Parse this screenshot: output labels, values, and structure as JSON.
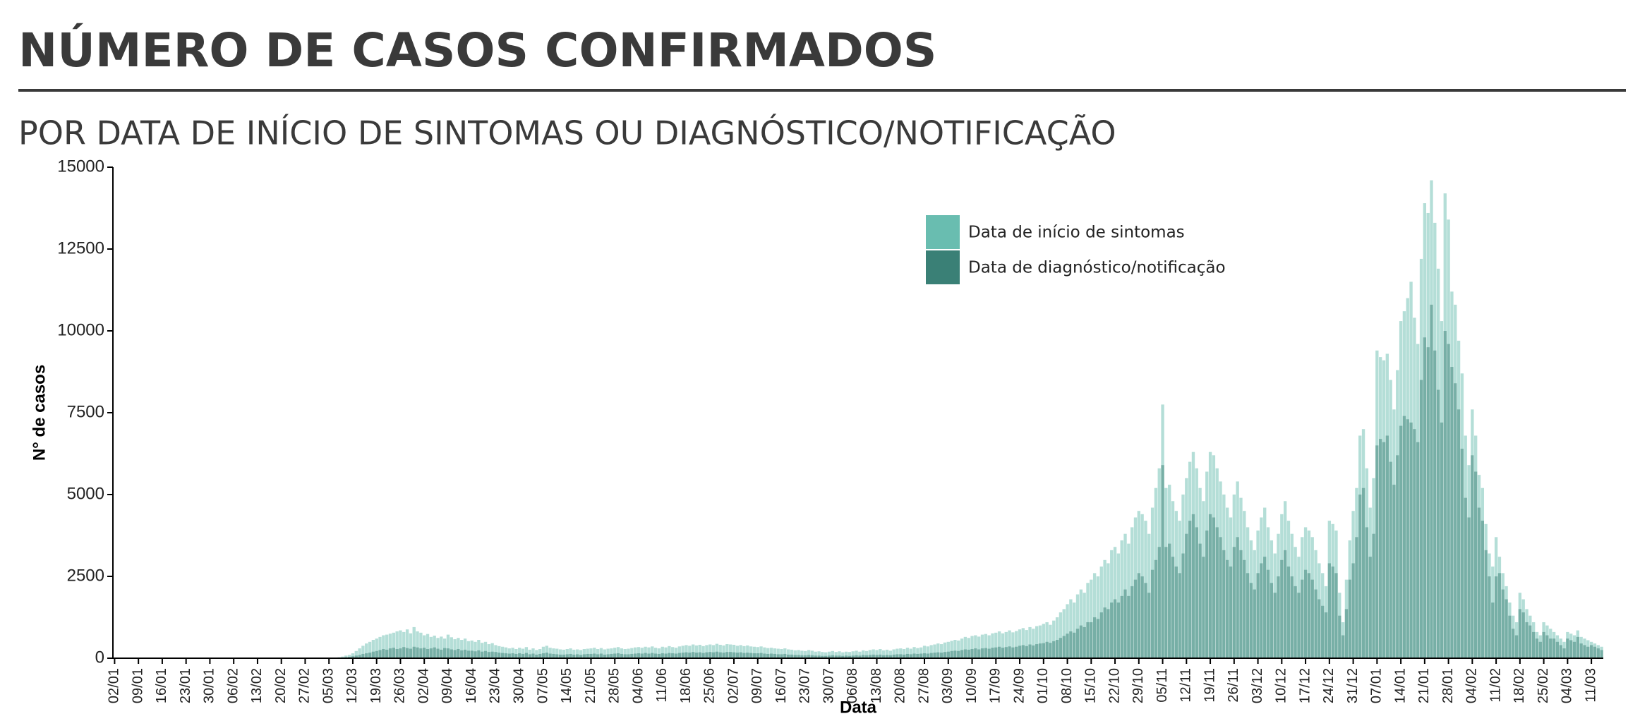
{
  "chart_data": {
    "type": "bar",
    "title": "NÚMERO DE CASOS CONFIRMADOS",
    "subtitle": "POR DATA DE INÍCIO DE SINTOMAS OU DIAGNÓSTICO/NOTIFICAÇÃO",
    "x_label": "Data",
    "y_label": "N° de casos",
    "ylim": [
      0,
      15000
    ],
    "yticks": [
      0,
      2500,
      5000,
      7500,
      10000,
      12500,
      15000
    ],
    "grid": false,
    "legend": "top-right",
    "categories": [
      "02/01",
      null,
      null,
      null,
      null,
      null,
      null,
      "09/01",
      null,
      null,
      null,
      null,
      null,
      null,
      "16/01",
      null,
      null,
      null,
      null,
      null,
      null,
      "23/01",
      null,
      null,
      null,
      null,
      null,
      null,
      "30/01",
      null,
      null,
      null,
      null,
      null,
      null,
      "06/02",
      null,
      null,
      null,
      null,
      null,
      null,
      "13/02",
      null,
      null,
      null,
      null,
      null,
      null,
      "20/02",
      null,
      null,
      null,
      null,
      null,
      null,
      "27/02",
      null,
      null,
      null,
      null,
      null,
      null,
      "05/03",
      null,
      null,
      null,
      null,
      null,
      null,
      "12/03",
      null,
      null,
      null,
      null,
      null,
      null,
      "19/03",
      null,
      null,
      null,
      null,
      null,
      null,
      "26/03",
      null,
      null,
      null,
      null,
      null,
      null,
      "02/04",
      null,
      null,
      null,
      null,
      null,
      null,
      "09/04",
      null,
      null,
      null,
      null,
      null,
      null,
      "16/04",
      null,
      null,
      null,
      null,
      null,
      null,
      "23/04",
      null,
      null,
      null,
      null,
      null,
      null,
      "30/04",
      null,
      null,
      null,
      null,
      null,
      null,
      "07/05",
      null,
      null,
      null,
      null,
      null,
      null,
      "14/05",
      null,
      null,
      null,
      null,
      null,
      null,
      "21/05",
      null,
      null,
      null,
      null,
      null,
      null,
      "28/05",
      null,
      null,
      null,
      null,
      null,
      null,
      "04/06",
      null,
      null,
      null,
      null,
      null,
      null,
      "11/06",
      null,
      null,
      null,
      null,
      null,
      null,
      "18/06",
      null,
      null,
      null,
      null,
      null,
      null,
      "25/06",
      null,
      null,
      null,
      null,
      null,
      null,
      "02/07",
      null,
      null,
      null,
      null,
      null,
      null,
      "09/07",
      null,
      null,
      null,
      null,
      null,
      null,
      "16/07",
      null,
      null,
      null,
      null,
      null,
      null,
      "23/07",
      null,
      null,
      null,
      null,
      null,
      null,
      "30/07",
      null,
      null,
      null,
      null,
      null,
      null,
      "06/08",
      null,
      null,
      null,
      null,
      null,
      null,
      "13/08",
      null,
      null,
      null,
      null,
      null,
      null,
      "20/08",
      null,
      null,
      null,
      null,
      null,
      null,
      "27/08",
      null,
      null,
      null,
      null,
      null,
      null,
      "03/09",
      null,
      null,
      null,
      null,
      null,
      null,
      "10/09",
      null,
      null,
      null,
      null,
      null,
      null,
      "17/09",
      null,
      null,
      null,
      null,
      null,
      null,
      "24/09",
      null,
      null,
      null,
      null,
      null,
      null,
      "01/10",
      null,
      null,
      null,
      null,
      null,
      null,
      "08/10",
      null,
      null,
      null,
      null,
      null,
      null,
      "15/10",
      null,
      null,
      null,
      null,
      null,
      null,
      "22/10",
      null,
      null,
      null,
      null,
      null,
      null,
      "29/10",
      null,
      null,
      null,
      null,
      null,
      null,
      "05/11",
      null,
      null,
      null,
      null,
      null,
      null,
      "12/11",
      null,
      null,
      null,
      null,
      null,
      null,
      "19/11",
      null,
      null,
      null,
      null,
      null,
      null,
      "26/11",
      null,
      null,
      null,
      null,
      null,
      null,
      "03/12",
      null,
      null,
      null,
      null,
      null,
      null,
      "10/12",
      null,
      null,
      null,
      null,
      null,
      null,
      "17/12",
      null,
      null,
      null,
      null,
      null,
      null,
      "24/12",
      null,
      null,
      null,
      null,
      null,
      null,
      "31/12",
      null,
      null,
      null,
      null,
      null,
      null,
      "07/01",
      null,
      null,
      null,
      null,
      null,
      null,
      "14/01",
      null,
      null,
      null,
      null,
      null,
      null,
      "21/01",
      null,
      null,
      null,
      null,
      null,
      null,
      "28/01",
      null,
      null,
      null,
      null,
      null,
      null,
      "04/02",
      null,
      null,
      null,
      null,
      null,
      null,
      "11/02",
      null,
      null,
      null,
      null,
      null,
      null,
      "18/02",
      null,
      null,
      null,
      null,
      null,
      null,
      "25/02",
      null,
      null,
      null,
      null,
      null,
      null,
      "04/03",
      null,
      null,
      null,
      null,
      null,
      null,
      "11/03",
      null,
      null,
      null
    ],
    "series": [
      {
        "name": "Data de início de sintomas",
        "color": "#69bdb0",
        "values": [
          0,
          0,
          0,
          0,
          0,
          0,
          0,
          0,
          0,
          0,
          0,
          0,
          0,
          0,
          0,
          0,
          0,
          0,
          0,
          0,
          0,
          0,
          0,
          0,
          0,
          0,
          0,
          0,
          0,
          0,
          0,
          0,
          0,
          0,
          0,
          0,
          0,
          0,
          0,
          0,
          0,
          0,
          0,
          0,
          0,
          0,
          0,
          0,
          0,
          0,
          0,
          0,
          0,
          0,
          0,
          0,
          0,
          0,
          0,
          0,
          0,
          0,
          0,
          5,
          10,
          20,
          30,
          50,
          80,
          100,
          150,
          220,
          300,
          380,
          450,
          500,
          560,
          600,
          650,
          700,
          720,
          750,
          780,
          820,
          850,
          800,
          880,
          760,
          950,
          820,
          780,
          700,
          740,
          650,
          690,
          620,
          660,
          600,
          720,
          640,
          580,
          620,
          560,
          600,
          520,
          540,
          500,
          560,
          470,
          500,
          430,
          460,
          400,
          370,
          350,
          330,
          300,
          320,
          280,
          320,
          290,
          340,
          260,
          300,
          250,
          280,
          350,
          380,
          320,
          300,
          290,
          270,
          260,
          280,
          300,
          260,
          270,
          250,
          280,
          290,
          300,
          320,
          280,
          310,
          270,
          290,
          300,
          320,
          340,
          300,
          280,
          290,
          310,
          330,
          340,
          320,
          350,
          330,
          360,
          320,
          300,
          350,
          330,
          370,
          340,
          320,
          360,
          380,
          400,
          380,
          420,
          390,
          410,
          370,
          400,
          420,
          400,
          440,
          410,
          390,
          430,
          420,
          410,
          380,
          400,
          370,
          390,
          360,
          350,
          340,
          360,
          330,
          310,
          320,
          300,
          290,
          280,
          300,
          270,
          260,
          240,
          250,
          230,
          220,
          250,
          230,
          200,
          210,
          190,
          180,
          200,
          220,
          190,
          210,
          180,
          200,
          190,
          210,
          230,
          200,
          240,
          220,
          250,
          270,
          250,
          280,
          240,
          260,
          230,
          270,
          290,
          300,
          280,
          320,
          290,
          340,
          310,
          330,
          380,
          360,
          400,
          420,
          450,
          430,
          480,
          500,
          530,
          560,
          540,
          600,
          650,
          620,
          680,
          700,
          660,
          720,
          740,
          700,
          760,
          780,
          820,
          760,
          800,
          850,
          790,
          830,
          880,
          920,
          860,
          950,
          900,
          980,
          1000,
          1050,
          1100,
          1020,
          1150,
          1250,
          1400,
          1500,
          1650,
          1800,
          1700,
          1950,
          2100,
          2000,
          2300,
          2400,
          2600,
          2500,
          2800,
          3000,
          2900,
          3300,
          3400,
          3200,
          3600,
          3800,
          3500,
          4000,
          4300,
          4500,
          4400,
          4200,
          3800,
          4600,
          5200,
          5800,
          7750,
          5200,
          5300,
          4800,
          4500,
          4200,
          5000,
          5500,
          6000,
          6300,
          5800,
          5200,
          4800,
          5700,
          6300,
          6200,
          5800,
          5400,
          5000,
          4600,
          4300,
          5000,
          5400,
          4900,
          4500,
          4000,
          3600,
          3300,
          3900,
          4300,
          4600,
          4000,
          3600,
          3200,
          3800,
          4400,
          4800,
          4200,
          3800,
          3400,
          3100,
          3700,
          4000,
          3900,
          3700,
          3300,
          2900,
          2600,
          2200,
          4200,
          4100,
          3900,
          2000,
          1100,
          2400,
          3600,
          4500,
          5200,
          6800,
          7000,
          5800,
          4600,
          5500,
          9400,
          9200,
          9100,
          9300,
          8500,
          7600,
          8800,
          10300,
          10600,
          11000,
          11500,
          10400,
          9600,
          12200,
          13900,
          13600,
          14600,
          13300,
          11900,
          10300,
          14200,
          13400,
          11200,
          10800,
          9700,
          8700,
          6800,
          5900,
          7600,
          6800,
          5600,
          5200,
          4100,
          3200,
          2800,
          3700,
          3100,
          2600,
          2200,
          1700,
          1300,
          1100,
          2000,
          1800,
          1500,
          1300,
          1100,
          800,
          700,
          1100,
          1000,
          900,
          800,
          700,
          600,
          500,
          800,
          750,
          700,
          850,
          650,
          600,
          550,
          500,
          450,
          400,
          350
        ]
      },
      {
        "name": "Data de diagnóstico/notificação",
        "color": "#3a8076",
        "values": [
          0,
          0,
          0,
          0,
          0,
          0,
          0,
          0,
          0,
          0,
          0,
          0,
          0,
          0,
          0,
          0,
          0,
          0,
          0,
          0,
          0,
          0,
          0,
          0,
          0,
          0,
          0,
          0,
          0,
          0,
          0,
          0,
          0,
          0,
          0,
          0,
          0,
          0,
          0,
          0,
          0,
          0,
          0,
          0,
          0,
          0,
          0,
          0,
          0,
          0,
          0,
          0,
          0,
          0,
          0,
          0,
          0,
          0,
          0,
          0,
          0,
          0,
          0,
          0,
          0,
          5,
          10,
          20,
          30,
          40,
          60,
          80,
          100,
          130,
          150,
          170,
          200,
          220,
          250,
          280,
          260,
          300,
          320,
          280,
          300,
          340,
          310,
          290,
          350,
          330,
          300,
          320,
          280,
          300,
          330,
          290,
          260,
          310,
          300,
          270,
          250,
          280,
          240,
          260,
          230,
          230,
          210,
          240,
          200,
          220,
          190,
          200,
          190,
          170,
          160,
          150,
          140,
          150,
          130,
          150,
          130,
          160,
          120,
          140,
          110,
          130,
          150,
          170,
          140,
          130,
          120,
          110,
          110,
          120,
          130,
          110,
          120,
          100,
          120,
          130,
          130,
          140,
          120,
          140,
          110,
          120,
          130,
          140,
          150,
          130,
          120,
          120,
          130,
          140,
          150,
          140,
          160,
          140,
          160,
          140,
          130,
          150,
          140,
          160,
          150,
          140,
          160,
          170,
          180,
          170,
          190,
          170,
          180,
          160,
          180,
          190,
          180,
          200,
          180,
          170,
          190,
          190,
          180,
          170,
          180,
          160,
          170,
          160,
          150,
          150,
          160,
          140,
          130,
          140,
          130,
          120,
          120,
          130,
          110,
          110,
          100,
          100,
          90,
          90,
          100,
          90,
          80,
          80,
          70,
          70,
          80,
          90,
          80,
          80,
          70,
          80,
          70,
          80,
          90,
          80,
          100,
          90,
          100,
          110,
          100,
          110,
          90,
          100,
          90,
          110,
          120,
          120,
          110,
          130,
          120,
          140,
          130,
          140,
          150,
          140,
          160,
          170,
          180,
          170,
          190,
          200,
          220,
          230,
          220,
          250,
          270,
          260,
          280,
          300,
          270,
          300,
          310,
          290,
          320,
          330,
          350,
          320,
          340,
          360,
          330,
          350,
          380,
          400,
          370,
          420,
          390,
          430,
          450,
          460,
          500,
          470,
          520,
          560,
          620,
          680,
          750,
          820,
          780,
          900,
          1000,
          950,
          1100,
          1100,
          1250,
          1200,
          1400,
          1550,
          1500,
          1700,
          1800,
          1700,
          1900,
          2100,
          1900,
          2200,
          2400,
          2600,
          2500,
          2300,
          2000,
          2700,
          3000,
          3400,
          5900,
          3400,
          3500,
          3100,
          2800,
          2600,
          3200,
          3800,
          4200,
          4400,
          4000,
          3500,
          3100,
          3900,
          4400,
          4300,
          4000,
          3700,
          3300,
          3000,
          2800,
          3400,
          3700,
          3300,
          3000,
          2600,
          2300,
          2100,
          2600,
          2900,
          3100,
          2700,
          2300,
          2000,
          2500,
          3000,
          3300,
          2800,
          2500,
          2200,
          2000,
          2400,
          2700,
          2600,
          2400,
          2100,
          1800,
          1600,
          1400,
          2900,
          2800,
          2600,
          1300,
          700,
          1500,
          2400,
          2900,
          3700,
          5000,
          5200,
          4000,
          3100,
          3800,
          6500,
          6700,
          6600,
          6800,
          6000,
          5300,
          6200,
          7100,
          7400,
          7300,
          7200,
          7000,
          6600,
          8500,
          9800,
          9500,
          10800,
          9400,
          8200,
          7200,
          10000,
          9600,
          8900,
          8400,
          7600,
          6400,
          4900,
          4300,
          6200,
          5700,
          4600,
          4200,
          3300,
          2500,
          1700,
          2500,
          2600,
          2100,
          1800,
          1300,
          900,
          700,
          1500,
          1400,
          1100,
          1000,
          800,
          600,
          500,
          800,
          700,
          600,
          600,
          500,
          400,
          300,
          600,
          550,
          500,
          650,
          450,
          400,
          350,
          400,
          350,
          300,
          250
        ]
      }
    ]
  }
}
